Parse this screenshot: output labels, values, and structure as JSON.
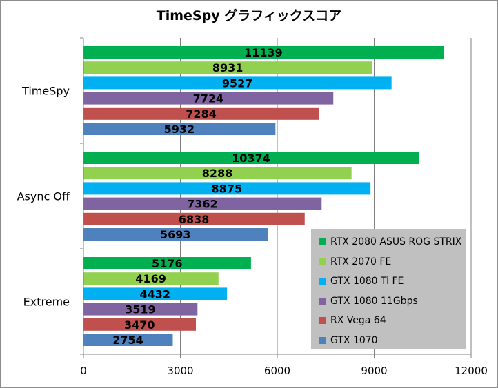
{
  "chart_data": {
    "type": "bar",
    "orientation": "horizontal",
    "title": "TimeSpy グラフィックスコア",
    "categories": [
      "TimeSpy",
      "Async Off",
      "Extreme"
    ],
    "series": [
      {
        "name": "RTX 2080 ASUS ROG STRIX",
        "color": "#00b050",
        "values": [
          11139,
          10374,
          5176
        ]
      },
      {
        "name": "RTX 2070 FE",
        "color": "#92d050",
        "values": [
          8931,
          8288,
          4169
        ]
      },
      {
        "name": "GTX 1080 Ti FE",
        "color": "#00b0f0",
        "values": [
          9527,
          8875,
          4432
        ]
      },
      {
        "name": "GTX 1080 11Gbps",
        "color": "#8064a2",
        "values": [
          7724,
          7362,
          3519
        ]
      },
      {
        "name": "RX Vega 64",
        "color": "#c0504d",
        "values": [
          7284,
          6838,
          3470
        ]
      },
      {
        "name": "GTX 1070",
        "color": "#4f81bd",
        "values": [
          5932,
          5693,
          2754
        ]
      }
    ],
    "xlim": [
      0,
      12000
    ],
    "xticks": [
      "0",
      "3000",
      "6000",
      "9000",
      "12000"
    ],
    "grid": true,
    "legend_position": "bottom-right",
    "data_labels": true
  }
}
